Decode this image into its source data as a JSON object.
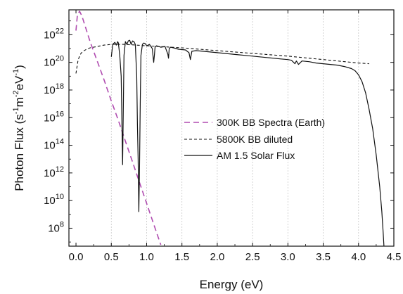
{
  "chart_data": {
    "type": "line",
    "xlabel": "Energy (eV)",
    "ylabel": {
      "base": "Photon Flux (s",
      "sup1": "-1",
      "mid1": "m",
      "sup2": "-2",
      "mid2": "eV",
      "sup3": "-1",
      "tail": ")"
    },
    "xlim": [
      -0.1,
      4.5
    ],
    "ylim_log10": [
      6.7,
      23.8
    ],
    "yscale": "log",
    "grid": "vertical dotted",
    "x_ticks": [
      {
        "value": 0.0,
        "label": "0.0"
      },
      {
        "value": 0.5,
        "label": "0.5"
      },
      {
        "value": 1.0,
        "label": "1.0"
      },
      {
        "value": 1.5,
        "label": "1.5"
      },
      {
        "value": 2.0,
        "label": "2.0"
      },
      {
        "value": 2.5,
        "label": "2.5"
      },
      {
        "value": 3.0,
        "label": "3.0"
      },
      {
        "value": 3.5,
        "label": "3.5"
      },
      {
        "value": 4.0,
        "label": "4.0"
      },
      {
        "value": 4.5,
        "label": "4.5"
      }
    ],
    "y_ticks": [
      {
        "exp": 8,
        "base": "10",
        "sup": "8"
      },
      {
        "exp": 10,
        "base": "10",
        "sup": "10"
      },
      {
        "exp": 12,
        "base": "10",
        "sup": "12"
      },
      {
        "exp": 14,
        "base": "10",
        "sup": "14"
      },
      {
        "exp": 16,
        "base": "10",
        "sup": "16"
      },
      {
        "exp": 18,
        "base": "10",
        "sup": "18"
      },
      {
        "exp": 20,
        "base": "10",
        "sup": "20"
      },
      {
        "exp": 22,
        "base": "10",
        "sup": "22"
      }
    ],
    "legend_position": "center-right",
    "series": [
      {
        "name": "300K BB Spectra (Earth)",
        "style": "long-dash",
        "color": "#b04cb0",
        "x": [
          0.0,
          0.02,
          0.05,
          0.08,
          0.1,
          0.15,
          0.2,
          0.3,
          0.4,
          0.5,
          0.6,
          0.7,
          0.8,
          0.9,
          1.0,
          1.1,
          1.2
        ],
        "log10_y": [
          22.3,
          23.45,
          23.7,
          23.4,
          23.1,
          22.3,
          21.5,
          20.1,
          18.7,
          17.2,
          15.8,
          14.3,
          12.8,
          11.3,
          9.8,
          8.3,
          6.8
        ]
      },
      {
        "name": "5800K BB diluted",
        "style": "short-dash",
        "color": "#111111",
        "x": [
          0.0,
          0.03,
          0.07,
          0.1,
          0.15,
          0.2,
          0.3,
          0.4,
          0.5,
          0.7,
          1.0,
          1.5,
          2.0,
          2.5,
          3.0,
          3.5,
          4.0,
          4.15
        ],
        "log10_y": [
          19.2,
          20.2,
          20.65,
          20.8,
          20.95,
          21.05,
          21.15,
          21.25,
          21.3,
          21.3,
          21.2,
          21.05,
          20.85,
          20.65,
          20.45,
          20.2,
          19.95,
          19.9
        ]
      },
      {
        "name": "AM 1.5 Solar Flux",
        "style": "solid",
        "color": "#111111",
        "x": [
          0.5,
          0.52,
          0.55,
          0.57,
          0.59,
          0.6,
          0.62,
          0.64,
          0.66,
          0.68,
          0.7,
          0.72,
          0.74,
          0.76,
          0.78,
          0.8,
          0.82,
          0.84,
          0.86,
          0.87,
          0.88,
          0.89,
          0.9,
          0.91,
          0.92,
          0.94,
          0.96,
          0.98,
          1.0,
          1.04,
          1.08,
          1.1,
          1.11,
          1.12,
          1.14,
          1.2,
          1.26,
          1.3,
          1.31,
          1.32,
          1.34,
          1.38,
          1.45,
          1.55,
          1.6,
          1.62,
          1.64,
          1.7,
          1.8,
          1.9,
          2.0,
          2.1,
          2.2,
          2.3,
          2.4,
          2.5,
          2.6,
          2.7,
          2.8,
          2.9,
          3.0,
          3.05,
          3.1,
          3.12,
          3.15,
          3.2,
          3.3,
          3.4,
          3.5,
          3.6,
          3.7,
          3.8,
          3.9,
          3.95,
          4.0,
          4.05,
          4.1,
          4.15,
          4.2,
          4.25,
          4.3,
          4.33,
          4.35,
          4.36
        ],
        "log10_y": [
          20.4,
          21.3,
          21.45,
          21.25,
          21.5,
          21.4,
          20.5,
          19.0,
          12.6,
          20.5,
          21.5,
          21.3,
          21.55,
          21.6,
          21.3,
          21.55,
          21.5,
          21.3,
          19.0,
          15.5,
          13.0,
          9.2,
          12.5,
          17.0,
          20.5,
          21.3,
          21.4,
          21.35,
          21.2,
          21.3,
          21.0,
          20.0,
          20.5,
          21.1,
          21.2,
          21.1,
          21.15,
          20.6,
          20.3,
          21.0,
          21.1,
          21.05,
          20.95,
          20.9,
          20.7,
          20.2,
          20.8,
          20.85,
          20.8,
          20.75,
          20.7,
          20.65,
          20.6,
          20.55,
          20.5,
          20.45,
          20.4,
          20.35,
          20.3,
          20.25,
          20.2,
          20.15,
          19.9,
          20.1,
          19.85,
          20.1,
          20.05,
          19.95,
          19.9,
          19.85,
          19.8,
          19.7,
          19.55,
          19.4,
          19.1,
          18.6,
          17.8,
          16.6,
          15.2,
          13.3,
          11.0,
          9.2,
          7.6,
          6.7
        ]
      }
    ]
  }
}
